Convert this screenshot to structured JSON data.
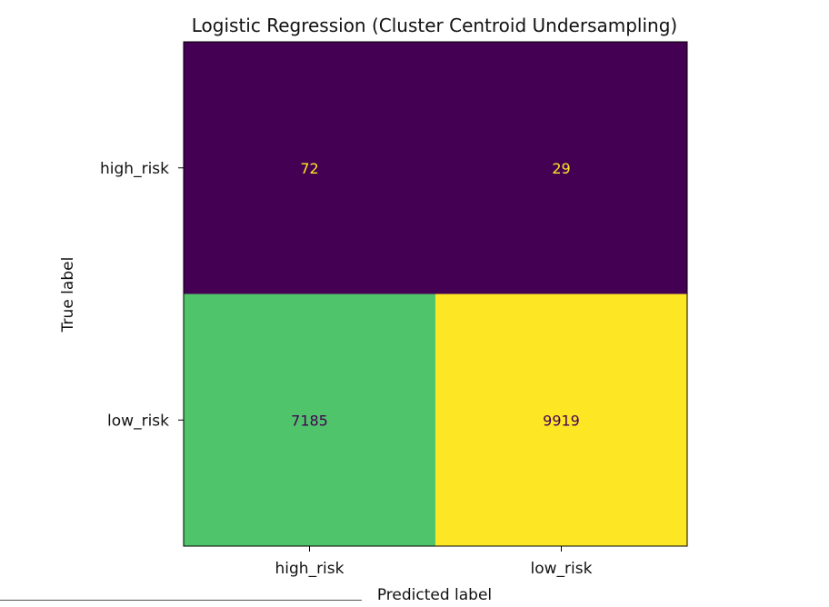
{
  "chart_data": {
    "type": "heatmap",
    "title": "Logistic Regression (Cluster Centroid Undersampling)",
    "xlabel": "Predicted label",
    "ylabel": "True label",
    "x_categories": [
      "high_risk",
      "low_risk"
    ],
    "y_categories": [
      "high_risk",
      "low_risk"
    ],
    "values": [
      [
        72,
        29
      ],
      [
        7185,
        9919
      ]
    ],
    "colormap": "viridis",
    "cell_colors": [
      [
        "#440154",
        "#440154"
      ],
      [
        "#50c46a",
        "#fde725"
      ]
    ],
    "value_text_colors": [
      [
        "#fde725",
        "#fde725"
      ],
      [
        "#440154",
        "#440154"
      ]
    ],
    "grid": false,
    "colorbar": false
  }
}
